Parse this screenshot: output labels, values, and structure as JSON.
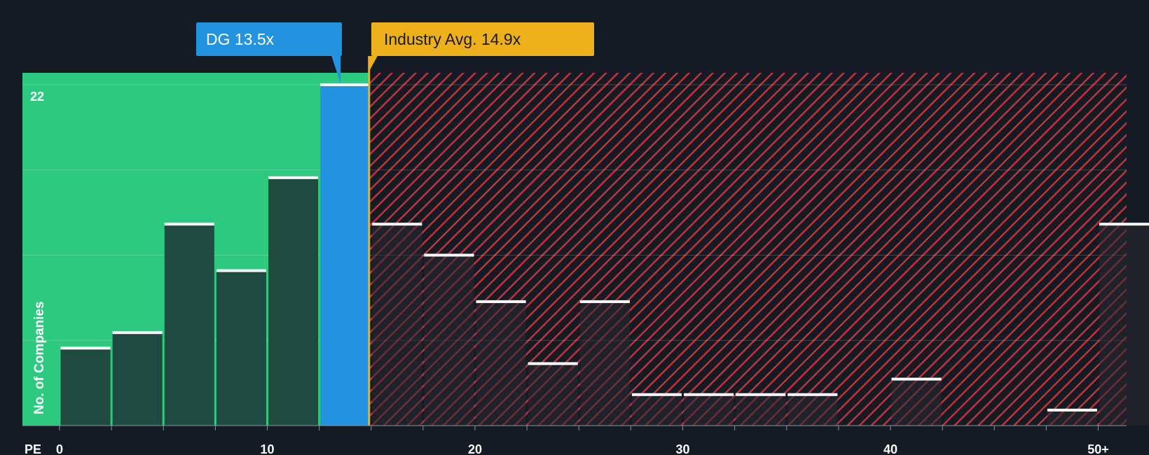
{
  "chart_data": {
    "type": "bar",
    "title": "",
    "xlabel": "PE",
    "ylabel": "No. of Companies",
    "x_ticks": [
      "0",
      "10",
      "20",
      "30",
      "40",
      "50+"
    ],
    "y_tick_label": "22",
    "xlim": [
      0,
      51.25
    ],
    "ylim": [
      0,
      22.7
    ],
    "bin_width": 2.5,
    "bins": [
      {
        "start": 0,
        "value": 5
      },
      {
        "start": 2.5,
        "value": 6
      },
      {
        "start": 5,
        "value": 13
      },
      {
        "start": 7.5,
        "value": 10
      },
      {
        "start": 10,
        "value": 16
      },
      {
        "start": 12.5,
        "value": 22,
        "highlight": true
      },
      {
        "start": 15,
        "value": 13
      },
      {
        "start": 17.5,
        "value": 11
      },
      {
        "start": 20,
        "value": 8
      },
      {
        "start": 22.5,
        "value": 4
      },
      {
        "start": 25,
        "value": 8
      },
      {
        "start": 27.5,
        "value": 2
      },
      {
        "start": 30,
        "value": 2
      },
      {
        "start": 32.5,
        "value": 2
      },
      {
        "start": 35,
        "value": 2
      },
      {
        "start": 37.5,
        "value": 0
      },
      {
        "start": 40,
        "value": 3
      },
      {
        "start": 42.5,
        "value": 0
      },
      {
        "start": 45,
        "value": 0
      },
      {
        "start": 47.5,
        "value": 1
      },
      {
        "start": 50,
        "value": 13
      }
    ],
    "company": {
      "label": "DG 13.5x",
      "value": 13.5
    },
    "industry": {
      "label": "Industry Avg. 14.9x",
      "value": 14.9
    }
  },
  "colors": {
    "background": "#151b24",
    "green_zone": "#2ec980",
    "red_zone": "#c1333a",
    "bar_fill": "#1f4a40",
    "bar_highlight": "#2393e0",
    "industry": "#ebb01c",
    "bar_cap": "#ffffff"
  }
}
